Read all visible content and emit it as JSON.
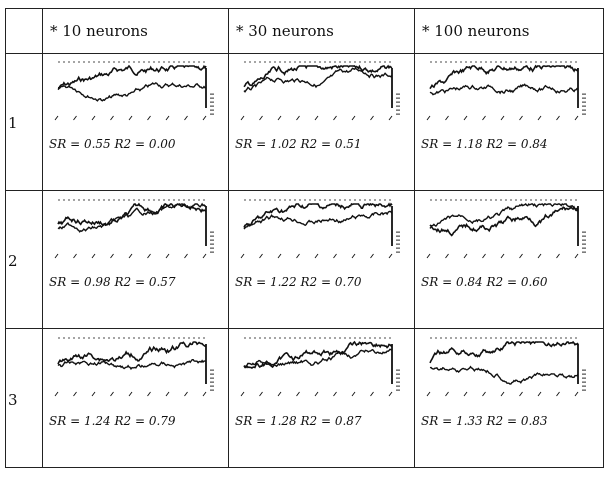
{
  "columns": [
    "* 10 neurons",
    "* 30 neurons",
    "* 100 neurons"
  ],
  "rows": [
    "1",
    "2",
    "3"
  ],
  "cells": [
    [
      "SR = 0.55 R2 = 0.00",
      "SR = 1.02 R2 = 0.51",
      "SR = 1.18 R2 = 0.84"
    ],
    [
      "SR = 0.98 R2 = 0.57",
      "SR = 1.22 R2 = 0.70",
      "SR = 0.84 R2 = 0.60"
    ],
    [
      "SR = 1.24 R2 = 0.79",
      "SR = 1.28 R2 = 0.87",
      "SR = 1.33 R2 = 0.83"
    ]
  ],
  "line_color": "#111111"
}
